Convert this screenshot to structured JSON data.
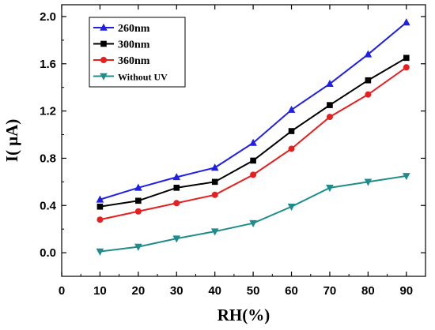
{
  "chart_data": {
    "type": "line",
    "title": "",
    "xlabel": "RH(%)",
    "ylabel": "I( μA)",
    "xlim": [
      0,
      95
    ],
    "ylim": [
      -0.2,
      2.1
    ],
    "x_ticks": [
      "0",
      "10",
      "20",
      "30",
      "40",
      "50",
      "60",
      "70",
      "80",
      "90"
    ],
    "y_ticks": [
      "0.0",
      "0.4",
      "0.8",
      "1.2",
      "1.6",
      "2.0"
    ],
    "grid": false,
    "legend_position": "top-left",
    "x": [
      10,
      20,
      30,
      40,
      50,
      60,
      70,
      80,
      90
    ],
    "series": [
      {
        "name": "260nm",
        "color": "#1f1fe6",
        "marker": "triangle-up",
        "values": [
          0.45,
          0.55,
          0.64,
          0.72,
          0.93,
          1.21,
          1.43,
          1.68,
          1.95
        ]
      },
      {
        "name": "300nm",
        "color": "#000000",
        "marker": "square",
        "values": [
          0.39,
          0.44,
          0.55,
          0.6,
          0.78,
          1.03,
          1.25,
          1.46,
          1.65
        ]
      },
      {
        "name": "360nm",
        "color": "#e61f1f",
        "marker": "circle",
        "values": [
          0.28,
          0.35,
          0.42,
          0.49,
          0.66,
          0.88,
          1.15,
          1.34,
          1.57
        ]
      },
      {
        "name": "Without UV",
        "color": "#1f8c8c",
        "marker": "triangle-down",
        "values": [
          0.01,
          0.05,
          0.12,
          0.18,
          0.25,
          0.39,
          0.55,
          0.6,
          0.65
        ]
      }
    ]
  }
}
